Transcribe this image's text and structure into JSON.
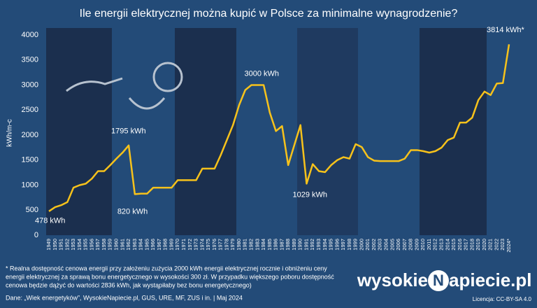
{
  "chart_data": {
    "type": "line",
    "title": "Ile energii elektrycznej można kupić w Polsce za minimalne wynagrodzenie?",
    "y_label": "kWh/m-c",
    "categories": [
      "1949",
      "1950",
      "1951",
      "1952",
      "1953",
      "1954",
      "1955",
      "1956",
      "1957",
      "1958",
      "1959",
      "1960",
      "1961",
      "1962",
      "1963",
      "1964",
      "1965",
      "1966",
      "1967",
      "1968",
      "1969",
      "1970",
      "1971",
      "1972",
      "1973",
      "1974",
      "1975",
      "1976",
      "1977",
      "1978",
      "1979",
      "1980",
      "1981",
      "1982",
      "1983",
      "1984",
      "1985",
      "1986",
      "1987",
      "1988",
      "1989",
      "1990",
      "1991",
      "1992",
      "1993",
      "1994",
      "1995",
      "1996",
      "1997",
      "1998",
      "1999",
      "2000",
      "2001",
      "2002",
      "2003",
      "2004",
      "2005",
      "2006",
      "2007",
      "2008",
      "2009",
      "2010",
      "2011",
      "2012",
      "2013",
      "2014",
      "2015",
      "2016",
      "2017",
      "2018",
      "2019",
      "2020",
      "2021",
      "2022",
      "2023",
      "2024*"
    ],
    "series": [
      {
        "name": "kWh/m-c",
        "color": "#f7c21b",
        "values": [
          478,
          560,
          600,
          660,
          950,
          1000,
          1030,
          1130,
          1280,
          1280,
          1400,
          1530,
          1650,
          1795,
          820,
          830,
          830,
          950,
          950,
          950,
          950,
          1100,
          1100,
          1100,
          1100,
          1330,
          1330,
          1330,
          1600,
          1900,
          2200,
          2600,
          2900,
          3000,
          3000,
          3000,
          2450,
          2080,
          2180,
          1400,
          1800,
          2200,
          1029,
          1420,
          1280,
          1260,
          1400,
          1500,
          1560,
          1530,
          1820,
          1760,
          1560,
          1490,
          1480,
          1480,
          1480,
          1480,
          1530,
          1700,
          1700,
          1680,
          1650,
          1680,
          1750,
          1900,
          1950,
          2250,
          2250,
          2350,
          2700,
          2870,
          2800,
          3030,
          3040,
          3814
        ]
      }
    ],
    "ylim": [
      0,
      4000
    ],
    "yticks": [
      0,
      500,
      1000,
      1500,
      2000,
      2500,
      3000,
      3500,
      4000
    ],
    "grid": false,
    "annotations": [
      {
        "x": "1949",
        "label": "478 kWh"
      },
      {
        "x": "1962",
        "label": "1795 kWh"
      },
      {
        "x": "1963",
        "label": "820 kWh"
      },
      {
        "x": "1982",
        "label": "3000 kWh"
      },
      {
        "x": "1991",
        "label": "1029 kWh"
      },
      {
        "x": "2024*",
        "label": "3814 kWh*"
      }
    ],
    "footnote": [
      "* Realna dostępność cenowa energii przy założeniu zużycia 2000 kWh energii elektrycznej rocznie i obniżeniu ceny",
      "energii elektrycznej za sprawą bonu energetycznego w wysokości 300 zł. W przypadku większego poboru dostępność",
      "cenowa będzie dążyć do wartości 2836 kWh, jak wystąpiłaby bez bonu energetycznego)"
    ],
    "source": "Dane: „Wiek energetyków”, WysokieNapiecie.pl, GUS, URE, MF, ZUS i in. |  Maj 2024",
    "logo": {
      "left": "wysokie",
      "mark": "N",
      "right": "apiecie.pl"
    },
    "license": "Licencja: CC-BY-SA 4.0"
  }
}
